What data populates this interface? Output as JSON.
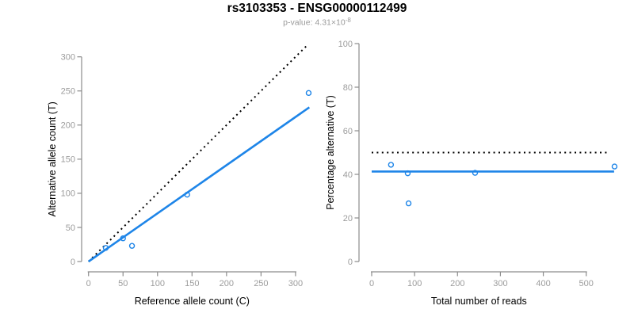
{
  "header": {
    "title": "rs3103353 - ENSG00000112499",
    "pvalue_label": "p-value: 4.31×10",
    "pvalue_exponent": "-8"
  },
  "colors": {
    "accent_blue": "#1E85E8",
    "dotted_black": "#000000",
    "axis_gray": "#8C8C8C",
    "tick_label_gray": "#9C9C9C",
    "axis_title_black": "#000000"
  },
  "chart_data": [
    {
      "type": "scatter",
      "name": "left-scatter-plot",
      "xlabel": "Reference allele count (C)",
      "ylabel": "Alternative allele count (T)",
      "xlim": [
        0,
        320
      ],
      "ylim": [
        0,
        318
      ],
      "xticks": [
        0,
        50,
        100,
        150,
        200,
        250,
        300
      ],
      "yticks": [
        0,
        50,
        100,
        150,
        200,
        250,
        300
      ],
      "grid": false,
      "points": [
        [
          25,
          20
        ],
        [
          50,
          34
        ],
        [
          63,
          23
        ],
        [
          143,
          98
        ],
        [
          319,
          247
        ]
      ],
      "lines": [
        {
          "name": "identity-line",
          "style": "dotted",
          "color": "black",
          "from": [
            0,
            0
          ],
          "to": [
            316,
            316
          ]
        },
        {
          "name": "fit-line",
          "style": "solid",
          "color": "blue",
          "slope": 0.7,
          "from": [
            0,
            0
          ],
          "to": [
            320,
            226
          ]
        }
      ]
    },
    {
      "type": "scatter",
      "name": "right-scatter-plot",
      "xlabel": "Total number of reads",
      "ylabel": "Percentage alternative (T)",
      "xlim": [
        0,
        588
      ],
      "ylim": [
        0,
        104
      ],
      "xticks": [
        0,
        100,
        200,
        300,
        400,
        500
      ],
      "yticks": [
        0,
        20,
        40,
        60,
        80,
        100
      ],
      "grid": false,
      "points": [
        [
          45,
          44.4
        ],
        [
          84,
          40.5
        ],
        [
          86,
          26.7
        ],
        [
          241,
          40.7
        ],
        [
          566,
          43.6
        ]
      ],
      "lines": [
        {
          "name": "fifty-percent-line",
          "style": "dotted",
          "color": "black",
          "from": [
            0,
            50
          ],
          "to": [
            552,
            50
          ]
        },
        {
          "name": "mean-percentage-line",
          "style": "solid",
          "color": "blue",
          "value": 41.3,
          "from": [
            0,
            41.3
          ],
          "to": [
            565,
            41.3
          ]
        }
      ]
    }
  ]
}
